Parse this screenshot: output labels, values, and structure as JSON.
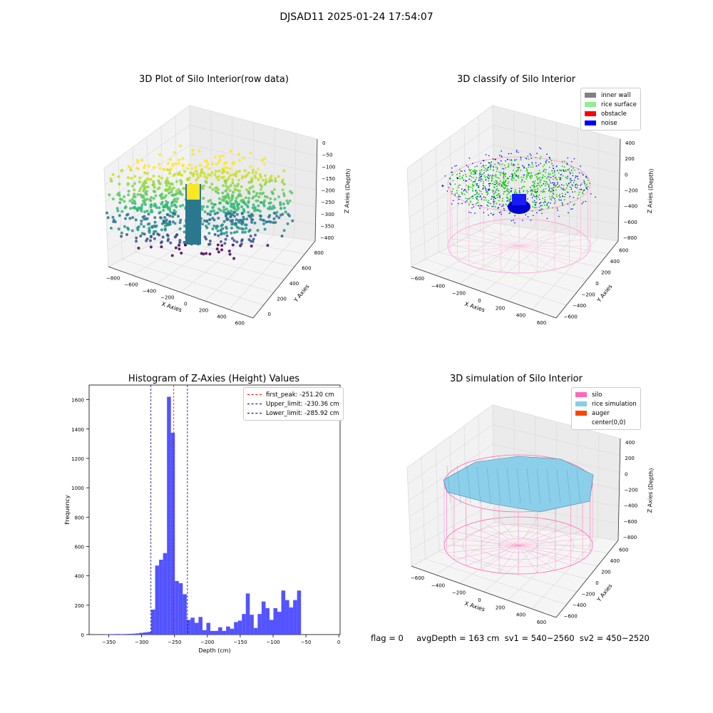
{
  "suptitle": "DJSAD11 2025-01-24 17:54:07",
  "panels": {
    "raw": {
      "title": "3D Plot of Silo Interior(row data)",
      "xlabel": "X Axies",
      "ylabel": "Y Axies",
      "zlabel": "Z Axies (Depth)",
      "xticks": [
        "−800",
        "−600",
        "−400",
        "−200",
        "0",
        "200",
        "400",
        "600"
      ],
      "yticks": [
        "0",
        "200",
        "400",
        "600",
        "800"
      ],
      "zticks": [
        "0",
        "−50",
        "−100",
        "−150",
        "−200",
        "−250",
        "−300",
        "−350",
        "−400"
      ]
    },
    "classify": {
      "title": "3D classify of Silo Interior",
      "xlabel": "X Axies",
      "ylabel": "Y Axies",
      "zlabel": "Z Axies (Depth)",
      "xticks": [
        "−600",
        "−400",
        "−200",
        "0",
        "200",
        "400",
        "600"
      ],
      "yticks": [
        "−600",
        "−400",
        "−200",
        "0",
        "200",
        "400",
        "600"
      ],
      "zticks": [
        "400",
        "200",
        "0",
        "−200",
        "−400",
        "−600",
        "−800"
      ],
      "legend": [
        {
          "label": "inner wall",
          "color": "#808080"
        },
        {
          "label": "rice surface",
          "color": "#90ee90"
        },
        {
          "label": "obstacle",
          "color": "#ff0000"
        },
        {
          "label": "noise",
          "color": "#0000ff"
        }
      ]
    },
    "simulation": {
      "title": "3D simulation of Silo Interior",
      "xlabel": "X Axies",
      "ylabel": "Y Axies",
      "zlabel": "Z Axies (Depth)",
      "xticks": [
        "−600",
        "−400",
        "−200",
        "0",
        "200",
        "400",
        "600"
      ],
      "yticks": [
        "−600",
        "−400",
        "−200",
        "0",
        "200",
        "400",
        "600"
      ],
      "zticks": [
        "400",
        "200",
        "0",
        "−200",
        "−400",
        "−600",
        "−800"
      ],
      "legend": [
        {
          "label": "silo",
          "color": "#ff69b4"
        },
        {
          "label": "rice simulation",
          "color": "#87ceeb"
        },
        {
          "label": "auger",
          "color": "#ff4500"
        },
        {
          "label": "center(0,0)",
          "color": "#ffffff"
        }
      ]
    }
  },
  "footer": "flag = 0     avgDepth = 163 cm  sv1 = 540~2560  sv2 = 450~2520",
  "chart_data": [
    {
      "type": "scatter",
      "title": "3D Plot of Silo Interior(row data)",
      "xlabel": "X Axies",
      "ylabel": "Y Axies",
      "zlabel": "Z Axies (Depth)",
      "xlim": [
        -900,
        700
      ],
      "ylim": [
        -100,
        850
      ],
      "zlim": [
        -420,
        0
      ],
      "colormap": "viridis"
    },
    {
      "type": "scatter",
      "title": "3D classify of Silo Interior",
      "xlabel": "X Axies",
      "ylabel": "Y Axies",
      "zlabel": "Z Axies (Depth)",
      "xlim": [
        -700,
        700
      ],
      "ylim": [
        -700,
        700
      ],
      "zlim": [
        -900,
        450
      ],
      "legend_position": "top-right"
    },
    {
      "type": "bar",
      "title": "Histogram of Z-Axies (Height) Values",
      "xlabel": "Depth (cm)",
      "ylabel": "Frequency",
      "xlim": [
        -380,
        2
      ],
      "ylim": [
        0,
        1700
      ],
      "xticks": [
        -350,
        -300,
        -250,
        -200,
        -150,
        -100,
        -50,
        0
      ],
      "yticks": [
        0,
        200,
        400,
        600,
        800,
        1000,
        1200,
        1400,
        1600
      ],
      "bar_color": "#4a4aff",
      "bins": {
        "x": [
          -354.5,
          -348.5,
          -342.5,
          -336.5,
          -330.5,
          -324.5,
          -318.5,
          -312.5,
          -306.5,
          -300.5,
          -294.5,
          -288.5,
          -282.5,
          -276.5,
          -270.5,
          -264.5,
          -258.5,
          -252.5,
          -246.5,
          -240.5,
          -234.5,
          -228.5,
          -222.5,
          -216.5,
          -210.5,
          -204.5,
          -198.5,
          -192.5,
          -186.5,
          -180.5,
          -174.5,
          -168.5,
          -162.5,
          -156.5,
          -150.5,
          -144.5,
          -138.5,
          -132.5,
          -126.5,
          -120.5,
          -114.5,
          -108.5,
          -102.5,
          -96.5,
          -90.5,
          -84.5,
          -78.5,
          -72.5,
          -66.5,
          -60.5,
          -54.5,
          -48.5,
          -42.5,
          -36.5,
          -30.5,
          -24.5,
          -18.5
        ],
        "width": 6,
        "values": [
          2,
          3,
          3,
          4,
          3,
          4,
          5,
          6,
          8,
          12,
          15,
          18,
          170,
          470,
          510,
          555,
          1620,
          1375,
          365,
          350,
          275,
          100,
          115,
          80,
          120,
          30,
          80,
          25,
          25,
          50,
          25,
          55,
          40,
          85,
          95,
          140,
          280,
          135,
          45,
          140,
          225,
          180,
          100,
          180,
          155,
          300,
          235,
          185,
          235,
          300,
          0,
          0,
          0,
          0,
          0,
          0,
          0
        ]
      },
      "lines": [
        {
          "name": "first_peak: -251.20 cm",
          "x": -251.2,
          "color": "#ff0000"
        },
        {
          "name": "Upper_limit: -230.36 cm",
          "x": -230.36,
          "color": "#00008b"
        },
        {
          "name": "Lower_limit: -285.92 cm",
          "x": -285.92,
          "color": "#00008b"
        }
      ],
      "legend_position": "top-right"
    },
    {
      "type": "area",
      "title": "3D simulation of Silo Interior",
      "xlabel": "X Axies",
      "ylabel": "Y Axies",
      "zlabel": "Z Axies (Depth)",
      "xlim": [
        -700,
        700
      ],
      "ylim": [
        -700,
        700
      ],
      "zlim": [
        -900,
        450
      ],
      "legend_position": "top-right"
    }
  ]
}
